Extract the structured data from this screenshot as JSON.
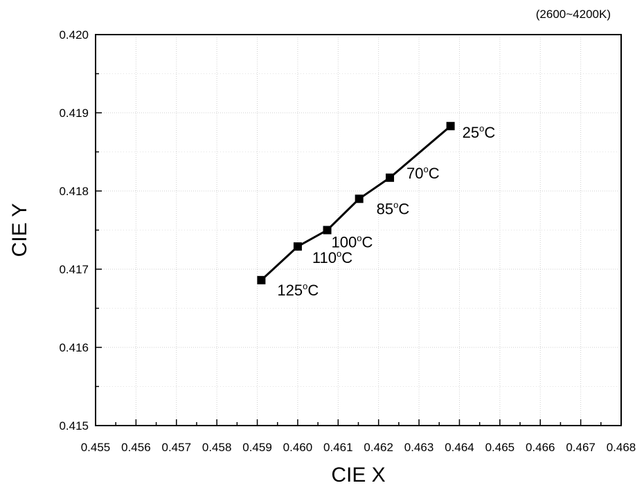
{
  "chart_data": {
    "type": "line",
    "title": "",
    "note": "(2600~4200K)",
    "xlabel": "CIE X",
    "ylabel": "CIE Y",
    "xlim": [
      0.455,
      0.468
    ],
    "ylim": [
      0.415,
      0.42
    ],
    "x_ticks": [
      0.455,
      0.456,
      0.457,
      0.458,
      0.459,
      0.46,
      0.461,
      0.462,
      0.463,
      0.464,
      0.465,
      0.466,
      0.467,
      0.468
    ],
    "x_tick_labels": [
      "0.455",
      "0.456",
      "0.457",
      "0.458",
      "0.459",
      "0.460",
      "0.461",
      "0.462",
      "0.463",
      "0.464",
      "0.465",
      "0.466",
      "0.467",
      "0.468"
    ],
    "y_ticks": [
      0.415,
      0.416,
      0.417,
      0.418,
      0.419,
      0.42
    ],
    "y_tick_labels": [
      "0.415",
      "0.416",
      "0.417",
      "0.418",
      "0.419",
      "0.420"
    ],
    "grid": true,
    "marker": "square",
    "series": [
      {
        "name": "",
        "color": "#000000",
        "points": [
          {
            "x": 0.46378,
            "y": 0.41883,
            "label": "25",
            "unit": "°C"
          },
          {
            "x": 0.46228,
            "y": 0.41817,
            "label": "70",
            "unit": "°C"
          },
          {
            "x": 0.46152,
            "y": 0.4179,
            "label": "85",
            "unit": "°C"
          },
          {
            "x": 0.46073,
            "y": 0.4175,
            "label": "100",
            "unit": "°C"
          },
          {
            "x": 0.46,
            "y": 0.41729,
            "label": "110",
            "unit": "°C"
          },
          {
            "x": 0.4591,
            "y": 0.41686,
            "label": "125",
            "unit": "°C"
          }
        ]
      }
    ]
  }
}
